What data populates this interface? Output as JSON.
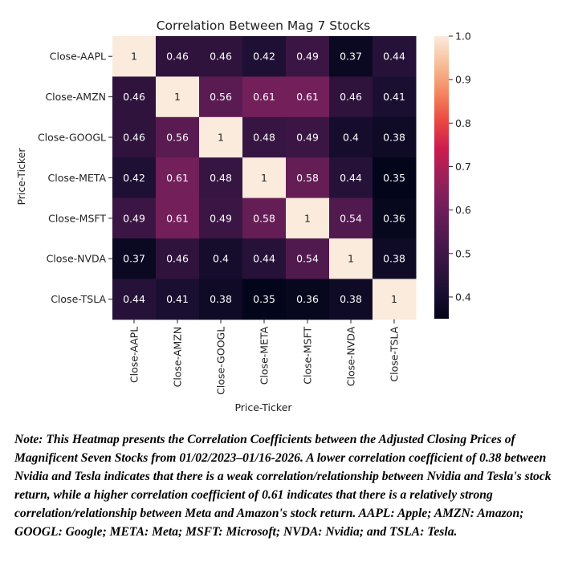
{
  "chart_data": {
    "type": "heatmap",
    "title": "Correlation Between Mag 7 Stocks",
    "xlabel": "Price-Ticker",
    "ylabel": "Price-Ticker",
    "rows": [
      "Close-AAPL",
      "Close-AMZN",
      "Close-GOOGL",
      "Close-META",
      "Close-MSFT",
      "Close-NVDA",
      "Close-TSLA"
    ],
    "columns": [
      "Close-AAPL",
      "Close-AMZN",
      "Close-GOOGL",
      "Close-META",
      "Close-MSFT",
      "Close-NVDA",
      "Close-TSLA"
    ],
    "values": [
      [
        1,
        0.46,
        0.46,
        0.42,
        0.49,
        0.37,
        0.44
      ],
      [
        0.46,
        1,
        0.56,
        0.61,
        0.61,
        0.46,
        0.41
      ],
      [
        0.46,
        0.56,
        1,
        0.48,
        0.49,
        0.4,
        0.38
      ],
      [
        0.42,
        0.61,
        0.48,
        1,
        0.58,
        0.44,
        0.35
      ],
      [
        0.49,
        0.61,
        0.49,
        0.58,
        1,
        0.54,
        0.36
      ],
      [
        0.37,
        0.46,
        0.4,
        0.44,
        0.54,
        1,
        0.38
      ],
      [
        0.44,
        0.41,
        0.38,
        0.35,
        0.36,
        0.38,
        1
      ]
    ],
    "colorbar": {
      "range": [
        0.35,
        1.0
      ],
      "ticks": [
        "1.0",
        "0.9",
        "0.8",
        "0.7",
        "0.6",
        "0.5",
        "0.4"
      ],
      "colormap": "rocket",
      "low_color": "#03051a",
      "high_color": "#faebdd"
    }
  },
  "note": "Note: This Heatmap presents the Correlation Coefficients between the Adjusted Closing Prices of Magnificent Seven Stocks from 01/02/2023–01/16-2026. A lower correlation coefficient of 0.38 between Nvidia and Tesla indicates that there is a weak correlation/relationship between Nvidia and Tesla's stock return, while a higher correlation coefficient of 0.61 indicates that there is a relatively strong correlation/relationship between Meta and Amazon's stock return. AAPL: Apple; AMZN: Amazon; GOOGL: Google; META: Meta; MSFT: Microsoft; NVDA: Nvidia; and TSLA: Tesla."
}
